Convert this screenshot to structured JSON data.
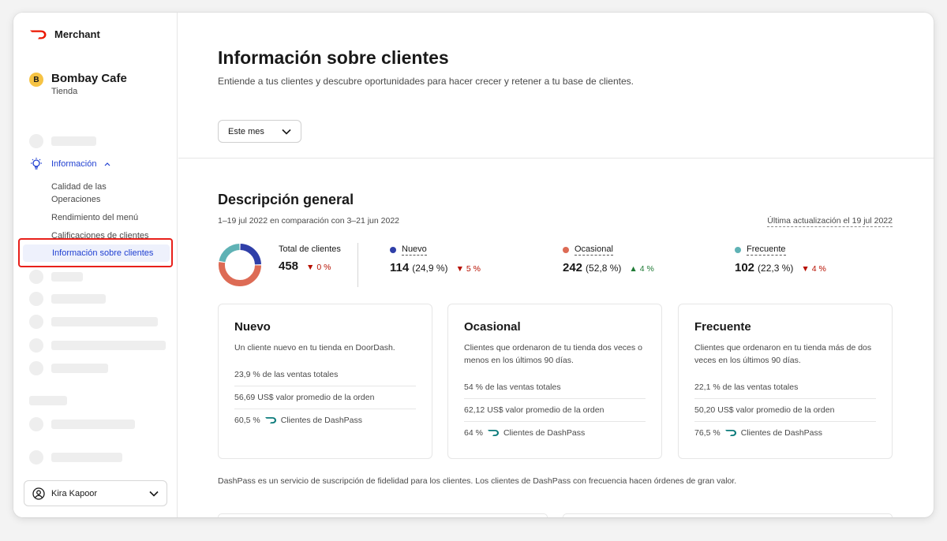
{
  "brand": {
    "name": "Merchant"
  },
  "store": {
    "initial": "B",
    "name": "Bombay Cafe",
    "type": "Tienda"
  },
  "nav": {
    "info_label": "Información",
    "sub_items": [
      "Calidad de las Operaciones",
      "Rendimiento del menú",
      "Calificaciones de clientes"
    ],
    "active_item": "Información sobre clientes"
  },
  "user": {
    "name": "Kira Kapoor"
  },
  "page": {
    "title": "Información sobre clientes",
    "subtitle": "Entiende a tus clientes y descubre oportunidades para hacer crecer y retener a tu base de clientes."
  },
  "period": {
    "selected": "Este mes"
  },
  "overview": {
    "title": "Descripción general",
    "range": "1–19 jul 2022 en comparación con 3–21 jun 2022",
    "updated": "Última actualización el 19 jul 2022",
    "total": {
      "label": "Total de clientes",
      "value": "458",
      "change": "▼ 0 %"
    },
    "segments": [
      {
        "label": "Nuevo",
        "value": "114",
        "pct": "(24,9 %)",
        "change": "▼ 5 %",
        "direction": "down",
        "color": "#2f3fa8",
        "share": 0.249
      },
      {
        "label": "Ocasional",
        "value": "242",
        "pct": "(52,8 %)",
        "change": "▲ 4 %",
        "direction": "up",
        "color": "#dd6b55",
        "share": 0.528
      },
      {
        "label": "Frecuente",
        "value": "102",
        "pct": "(22,3 %)",
        "change": "▼ 4 %",
        "direction": "down",
        "color": "#5fb2b5",
        "share": 0.223
      }
    ]
  },
  "cards": [
    {
      "title": "Nuevo",
      "desc": "Un cliente nuevo en tu tienda en DoorDash.",
      "sales": "23,9 % de las ventas totales",
      "avg": "56,69 US$ valor promedio de la orden",
      "dashpass_pct": "60,5 %",
      "dashpass_label": "Clientes de DashPass"
    },
    {
      "title": "Ocasional",
      "desc": "Clientes que ordenaron de tu tienda dos veces o menos en los últimos 90 días.",
      "sales": "54 % de las ventas totales",
      "avg": "62,12 US$ valor promedio de la orden",
      "dashpass_pct": "64 %",
      "dashpass_label": "Clientes de DashPass"
    },
    {
      "title": "Frecuente",
      "desc": "Clientes que ordenaron en tu tienda más de dos veces en los últimos 90 días.",
      "sales": "22,1 % de las ventas totales",
      "avg": "50,20 US$ valor promedio de la orden",
      "dashpass_pct": "76,5 %",
      "dashpass_label": "Clientes de DashPass"
    }
  ],
  "footnote": "DashPass es un servicio de suscripción de fidelidad para los clientes. Los clientes de DashPass con frecuencia hacen órdenes de gran valor.",
  "colors": {
    "brand": "#eb1700",
    "accent": "#1f3fd1",
    "highlight": "#e8201a"
  }
}
